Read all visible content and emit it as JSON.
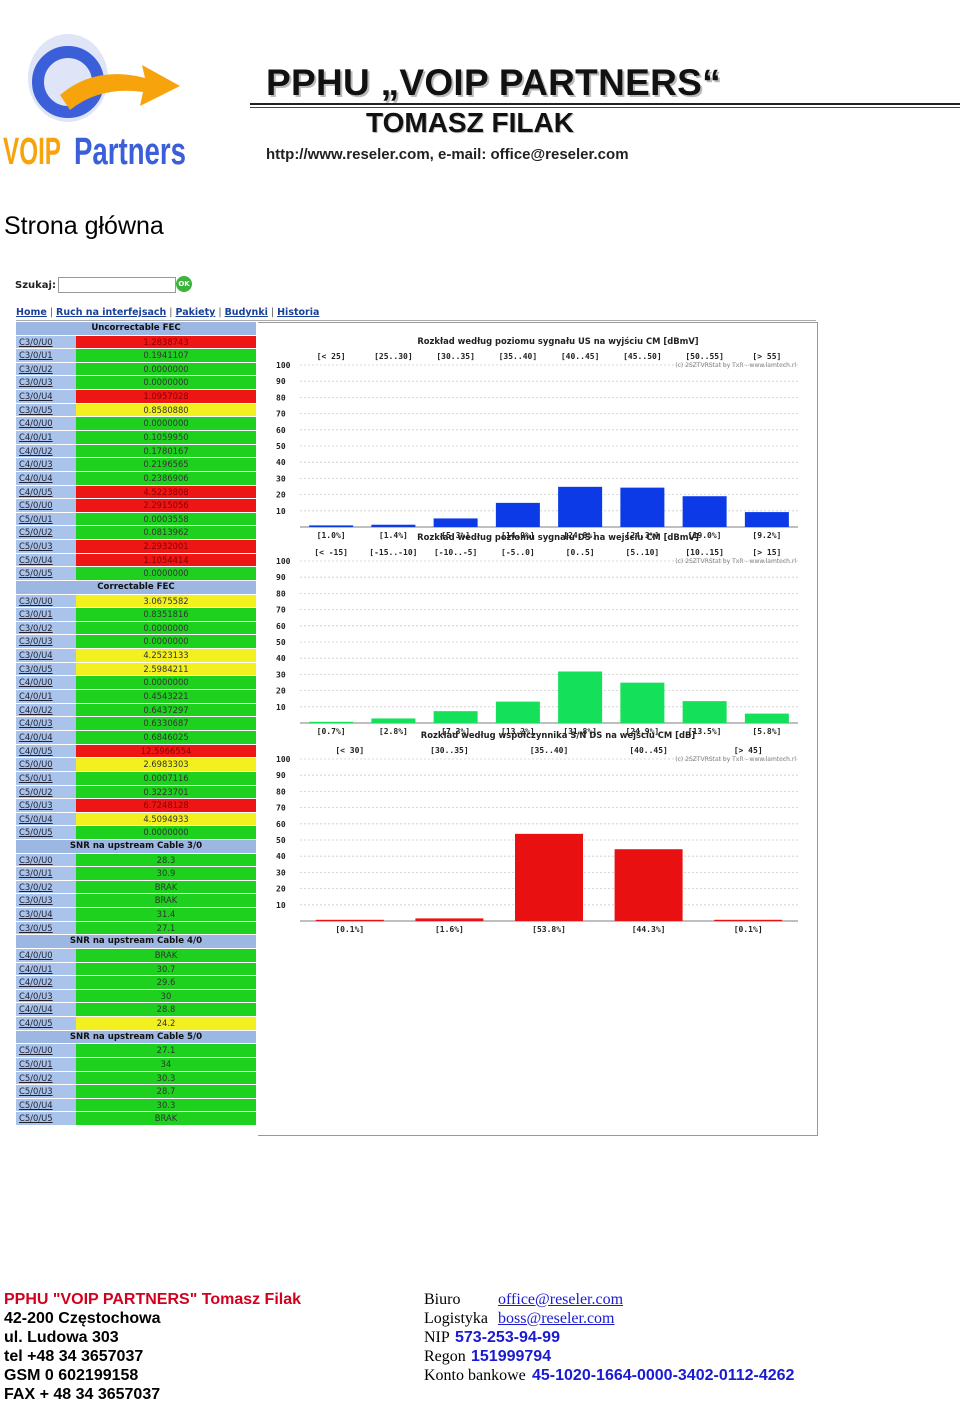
{
  "brand": {
    "logo_text_1": "VOIP",
    "logo_text_2": "Partners",
    "logo_orange": "#f7a30c",
    "logo_blue": "#3b5fd9"
  },
  "header": {
    "title": "PPHU „VOIP PARTNERS“",
    "name": "TOMASZ FILAK",
    "contact": "http://www.reseler.com,  e-mail: office@reseler.com"
  },
  "page_title": "Strona główna",
  "screenshot": {
    "search_label": "Szukaj:",
    "ok_label": "OK",
    "nav": [
      "Home",
      "Ruch na interfejsach",
      "Pakiety",
      "Budynki",
      "Historia"
    ],
    "sections": [
      {
        "title": "Uncorrectable FEC",
        "rows": [
          [
            "C3/0/U0",
            "1.2838743",
            "r"
          ],
          [
            "C3/0/U1",
            "0.1941107",
            "g"
          ],
          [
            "C3/0/U2",
            "0.0000000",
            "g"
          ],
          [
            "C3/0/U3",
            "0.0000000",
            "g"
          ],
          [
            "C3/0/U4",
            "1.0957028",
            "r"
          ],
          [
            "C3/0/U5",
            "0.8580880",
            "y"
          ],
          [
            "C4/0/U0",
            "0.0000000",
            "g"
          ],
          [
            "C4/0/U1",
            "0.1059950",
            "g"
          ],
          [
            "C4/0/U2",
            "0.1780167",
            "g"
          ],
          [
            "C4/0/U3",
            "0.2196565",
            "g"
          ],
          [
            "C4/0/U4",
            "0.2386906",
            "g"
          ],
          [
            "C4/0/U5",
            "4.5223808",
            "r"
          ],
          [
            "C5/0/U0",
            "2.2915056",
            "r"
          ],
          [
            "C5/0/U1",
            "0.0003558",
            "g"
          ],
          [
            "C5/0/U2",
            "0.0813962",
            "g"
          ],
          [
            "C5/0/U3",
            "2.2932001",
            "r"
          ],
          [
            "C5/0/U4",
            "1.1054414",
            "r"
          ],
          [
            "C5/0/U5",
            "0.0000000",
            "g"
          ]
        ]
      },
      {
        "title": "Correctable FEC",
        "rows": [
          [
            "C3/0/U0",
            "3.0675582",
            "y"
          ],
          [
            "C3/0/U1",
            "0.8351816",
            "g"
          ],
          [
            "C3/0/U2",
            "0.0000000",
            "g"
          ],
          [
            "C3/0/U3",
            "0.0000000",
            "g"
          ],
          [
            "C3/0/U4",
            "4.2523133",
            "y"
          ],
          [
            "C3/0/U5",
            "2.5984211",
            "y"
          ],
          [
            "C4/0/U0",
            "0.0000000",
            "g"
          ],
          [
            "C4/0/U1",
            "0.4543221",
            "g"
          ],
          [
            "C4/0/U2",
            "0.6437297",
            "g"
          ],
          [
            "C4/0/U3",
            "0.6330687",
            "g"
          ],
          [
            "C4/0/U4",
            "0.6846025",
            "g"
          ],
          [
            "C4/0/U5",
            "12.5966554",
            "r"
          ],
          [
            "C5/0/U0",
            "2.6983303",
            "y"
          ],
          [
            "C5/0/U1",
            "0.0007116",
            "g"
          ],
          [
            "C5/0/U2",
            "0.3223701",
            "g"
          ],
          [
            "C5/0/U3",
            "6.7248128",
            "r"
          ],
          [
            "C5/0/U4",
            "4.5094933",
            "y"
          ],
          [
            "C5/0/U5",
            "0.0000000",
            "g"
          ]
        ]
      },
      {
        "title": "SNR na upstream Cable 3/0",
        "rows": [
          [
            "C3/0/U0",
            "28.3",
            "g"
          ],
          [
            "C3/0/U1",
            "30.9",
            "g"
          ],
          [
            "C3/0/U2",
            "BRAK",
            "g"
          ],
          [
            "C3/0/U3",
            "BRAK",
            "g"
          ],
          [
            "C3/0/U4",
            "31.4",
            "g"
          ],
          [
            "C3/0/U5",
            "27.1",
            "g"
          ]
        ]
      },
      {
        "title": "SNR na upstream Cable 4/0",
        "rows": [
          [
            "C4/0/U0",
            "BRAK",
            "g"
          ],
          [
            "C4/0/U1",
            "30.7",
            "g"
          ],
          [
            "C4/0/U2",
            "29.6",
            "g"
          ],
          [
            "C4/0/U3",
            "30",
            "g"
          ],
          [
            "C4/0/U4",
            "28.8",
            "g"
          ],
          [
            "C4/0/U5",
            "24.2",
            "y"
          ]
        ]
      },
      {
        "title": "SNR na upstream Cable 5/0",
        "rows": [
          [
            "C5/0/U0",
            "27.1",
            "g"
          ],
          [
            "C5/0/U1",
            "34",
            "g"
          ],
          [
            "C5/0/U2",
            "30.3",
            "g"
          ],
          [
            "C5/0/U3",
            "28.7",
            "g"
          ],
          [
            "C5/0/U4",
            "30.3",
            "g"
          ],
          [
            "C5/0/U5",
            "BRAK",
            "g"
          ]
        ]
      }
    ]
  },
  "chart_data": [
    {
      "type": "bar",
      "title": "Rozkład według poziomu sygnału US na wyjściu CM [dBmV]",
      "credit": "(c) 2SZTVRStat by TxR - www.lamtech.rl",
      "categories": [
        "< 25",
        "25..30",
        "30..35",
        "35..40",
        "40..45",
        "45..50",
        "50..55",
        "> 55"
      ],
      "values": [
        1.0,
        1.4,
        5.3,
        14.9,
        24.8,
        24.3,
        19.0,
        9.2
      ],
      "value_labels": [
        "[1.0%]",
        "[1.4%]",
        "[5.3%]",
        "[14.9%]",
        "[24.8%]",
        "[24.3%]",
        "[19.0%]",
        "[9.2%]"
      ],
      "ylim": [
        0,
        100
      ],
      "yticks": [
        "100",
        "90",
        "80",
        "70",
        "60",
        "50",
        "40",
        "30",
        "20",
        "10"
      ],
      "color": "#0b3ae6"
    },
    {
      "type": "bar",
      "title": "Rozkład według poziomu sygnału DS na wejściu CM [dBmV]",
      "credit": "(c) 2SZTVRStat by TxR - www.lamtech.rl",
      "categories": [
        "< -15",
        "-15..-10",
        "-10..-5",
        "-5..0",
        "0..5",
        "5..10",
        "10..15",
        "> 15"
      ],
      "values": [
        0.7,
        2.8,
        7.3,
        13.2,
        31.8,
        24.9,
        13.5,
        5.8
      ],
      "value_labels": [
        "[0.7%]",
        "[2.8%]",
        "[7.3%]",
        "[13.2%]",
        "[31.8%]",
        "[24.9%]",
        "[13.5%]",
        "[5.8%]"
      ],
      "ylim": [
        0,
        100
      ],
      "yticks": [
        "100",
        "90",
        "80",
        "70",
        "60",
        "50",
        "40",
        "30",
        "20",
        "10"
      ],
      "color": "#14e05a"
    },
    {
      "type": "bar",
      "title": "Rozkład według współczynnika S/N DS na wejściu CM [dB]",
      "credit": "(c) 2SZTVRStat by TxR - www.lamtech.rl",
      "categories": [
        "< 30",
        "30..35",
        "35..40",
        "40..45",
        "> 45"
      ],
      "values": [
        0.1,
        1.6,
        53.8,
        44.3,
        0.1
      ],
      "value_labels": [
        "[0.1%]",
        "[1.6%]",
        "[53.8%]",
        "[44.3%]",
        "[0.1%]"
      ],
      "ylim": [
        0,
        100
      ],
      "yticks": [
        "100",
        "90",
        "80",
        "70",
        "60",
        "50",
        "40",
        "30",
        "20",
        "10"
      ],
      "color": "#e81010"
    }
  ],
  "footer": {
    "company": "PPHU \"VOIP PARTNERS\" Tomasz Filak",
    "addr1": "42-200 Częstochowa",
    "addr2": "ul. Ludowa 303",
    "tel": "tel +48 34 3657037",
    "gsm": "GSM 0 602199158",
    "fax": "FAX + 48 34 3657037",
    "biuro_label": "Biuro",
    "biuro_email": "office@reseler.com",
    "logistyka_label": "Logistyka",
    "logistyka_email": "boss@reseler.com",
    "nip_label": "NIP",
    "nip": "573-253-94-99",
    "regon_label": "Regon",
    "regon": "151999794",
    "konto_label": "Konto bankowe",
    "konto": "45-1020-1664-0000-3402-0112-4262"
  }
}
